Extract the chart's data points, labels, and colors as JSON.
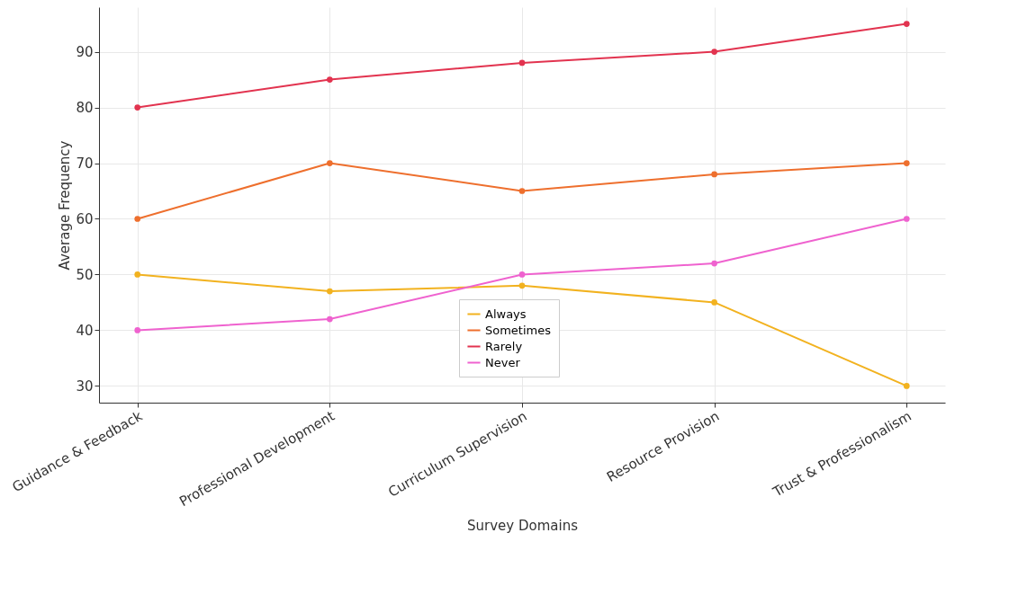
{
  "chart_data": {
    "type": "line",
    "xlabel": "Survey Domains",
    "ylabel": "Average Frequency",
    "categories": [
      "Guidance & Feedback",
      "Professional Development",
      "Curriculum Supervision",
      "Resource Provision",
      "Trust & Professionalism"
    ],
    "series": [
      {
        "name": "Always",
        "color": "#f2b21f",
        "values": [
          50,
          47,
          48,
          45,
          30
        ]
      },
      {
        "name": "Sometimes",
        "color": "#ee6f2d",
        "values": [
          60,
          70,
          65,
          68,
          70
        ]
      },
      {
        "name": "Rarely",
        "color": "#e2334f",
        "values": [
          80,
          85,
          88,
          90,
          95
        ]
      },
      {
        "name": "Never",
        "color": "#ef62cf",
        "values": [
          40,
          42,
          50,
          52,
          60
        ]
      }
    ],
    "ylim": [
      27,
      98
    ],
    "yticks": [
      30,
      40,
      50,
      60,
      70,
      80,
      90
    ],
    "grid": true,
    "legend": "bottom",
    "marker": "circle"
  }
}
